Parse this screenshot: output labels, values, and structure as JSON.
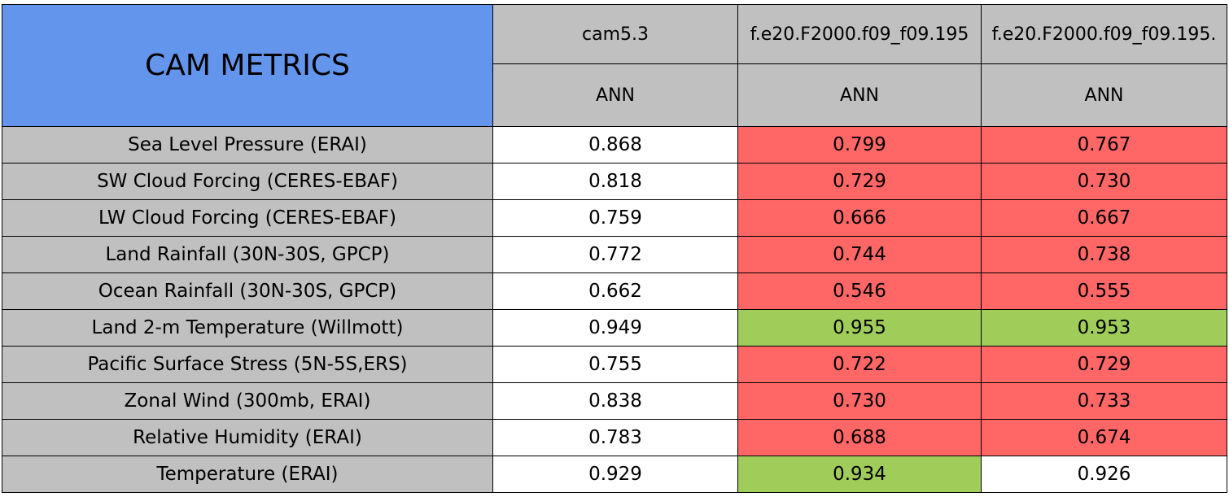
{
  "title": "CAM METRICS",
  "header": {
    "cases": [
      "cam5.3",
      "f.e20.F2000.f09_f09.195",
      "f.e20.F2000.f09_f09.195."
    ],
    "seasons": [
      "ANN",
      "ANN",
      "ANN"
    ]
  },
  "colors": {
    "title": "#6495ed",
    "header": "#c0c0c0",
    "label": "#c0c0c0",
    "plain": "#ffffff",
    "worse": "#ff6666",
    "better": "#a0cc5a"
  },
  "rows": [
    {
      "label": "Sea Level Pressure (ERAI)",
      "values": [
        "0.868",
        "0.799",
        "0.767"
      ],
      "status": [
        "plain",
        "worse",
        "worse"
      ]
    },
    {
      "label": "SW Cloud Forcing (CERES-EBAF)",
      "values": [
        "0.818",
        "0.729",
        "0.730"
      ],
      "status": [
        "plain",
        "worse",
        "worse"
      ]
    },
    {
      "label": "LW Cloud Forcing (CERES-EBAF)",
      "values": [
        "0.759",
        "0.666",
        "0.667"
      ],
      "status": [
        "plain",
        "worse",
        "worse"
      ]
    },
    {
      "label": "Land Rainfall (30N-30S, GPCP)",
      "values": [
        "0.772",
        "0.744",
        "0.738"
      ],
      "status": [
        "plain",
        "worse",
        "worse"
      ]
    },
    {
      "label": "Ocean Rainfall (30N-30S, GPCP)",
      "values": [
        "0.662",
        "0.546",
        "0.555"
      ],
      "status": [
        "plain",
        "worse",
        "worse"
      ]
    },
    {
      "label": "Land 2-m Temperature (Willmott)",
      "values": [
        "0.949",
        "0.955",
        "0.953"
      ],
      "status": [
        "plain",
        "better",
        "better"
      ]
    },
    {
      "label": "Pacific Surface Stress (5N-5S,ERS)",
      "values": [
        "0.755",
        "0.722",
        "0.729"
      ],
      "status": [
        "plain",
        "worse",
        "worse"
      ]
    },
    {
      "label": "Zonal Wind (300mb, ERAI)",
      "values": [
        "0.838",
        "0.730",
        "0.733"
      ],
      "status": [
        "plain",
        "worse",
        "worse"
      ]
    },
    {
      "label": "Relative Humidity (ERAI)",
      "values": [
        "0.783",
        "0.688",
        "0.674"
      ],
      "status": [
        "plain",
        "worse",
        "worse"
      ]
    },
    {
      "label": "Temperature (ERAI)",
      "values": [
        "0.929",
        "0.934",
        "0.926"
      ],
      "status": [
        "plain",
        "better",
        "plain"
      ]
    }
  ]
}
